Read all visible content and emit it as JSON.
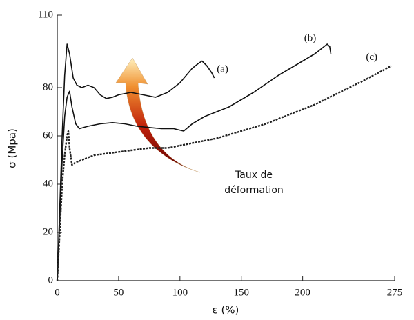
{
  "chart_data": {
    "type": "line",
    "x_label": "ε (%)",
    "y_label": "σ (Mpa)",
    "xlim": [
      0,
      275
    ],
    "xticks": [
      0,
      50,
      100,
      150,
      200,
      275
    ],
    "ylim": [
      0,
      110
    ],
    "yticks": [
      0,
      20,
      40,
      60,
      80,
      110
    ],
    "arrow_label": [
      "Taux de",
      "déformation"
    ],
    "series": [
      {
        "name": "(a)",
        "color": "#111111",
        "x": [
          0,
          2,
          4,
          6,
          8,
          10,
          13,
          16,
          20,
          25,
          30,
          35,
          40,
          45,
          50,
          60,
          70,
          80,
          90,
          100,
          105,
          110,
          115,
          118,
          122,
          126,
          128
        ],
        "values": [
          0,
          30,
          60,
          85,
          98,
          94,
          84,
          81,
          80,
          81,
          80,
          77,
          75.5,
          76,
          77,
          78,
          77,
          76,
          78,
          82,
          85,
          88,
          90,
          91,
          89,
          86,
          84
        ]
      },
      {
        "name": "(b)",
        "color": "#111111",
        "x": [
          0,
          2,
          4,
          6,
          8,
          10,
          12,
          15,
          18,
          25,
          35,
          45,
          55,
          65,
          75,
          85,
          95,
          103,
          110,
          120,
          140,
          160,
          180,
          200,
          210,
          220,
          222,
          223
        ],
        "values": [
          0,
          25,
          50,
          68,
          76,
          78.5,
          72,
          65,
          63,
          64,
          65,
          65.5,
          65,
          64,
          63.5,
          63,
          63,
          62,
          65,
          68,
          72,
          78,
          85,
          91,
          94,
          98,
          97,
          94
        ]
      },
      {
        "name": "(c)",
        "color": "#222222",
        "x": [
          0,
          2,
          4,
          6,
          8,
          9,
          10,
          12,
          15,
          20,
          30,
          45,
          60,
          75,
          90,
          110,
          130,
          150,
          170,
          190,
          210,
          230,
          250,
          265,
          272
        ],
        "values": [
          0,
          20,
          40,
          52,
          60,
          62,
          55,
          48,
          49,
          50,
          52,
          53,
          54,
          55,
          55,
          57,
          59,
          62,
          65,
          69,
          73,
          78,
          83,
          87,
          89
        ]
      }
    ]
  }
}
